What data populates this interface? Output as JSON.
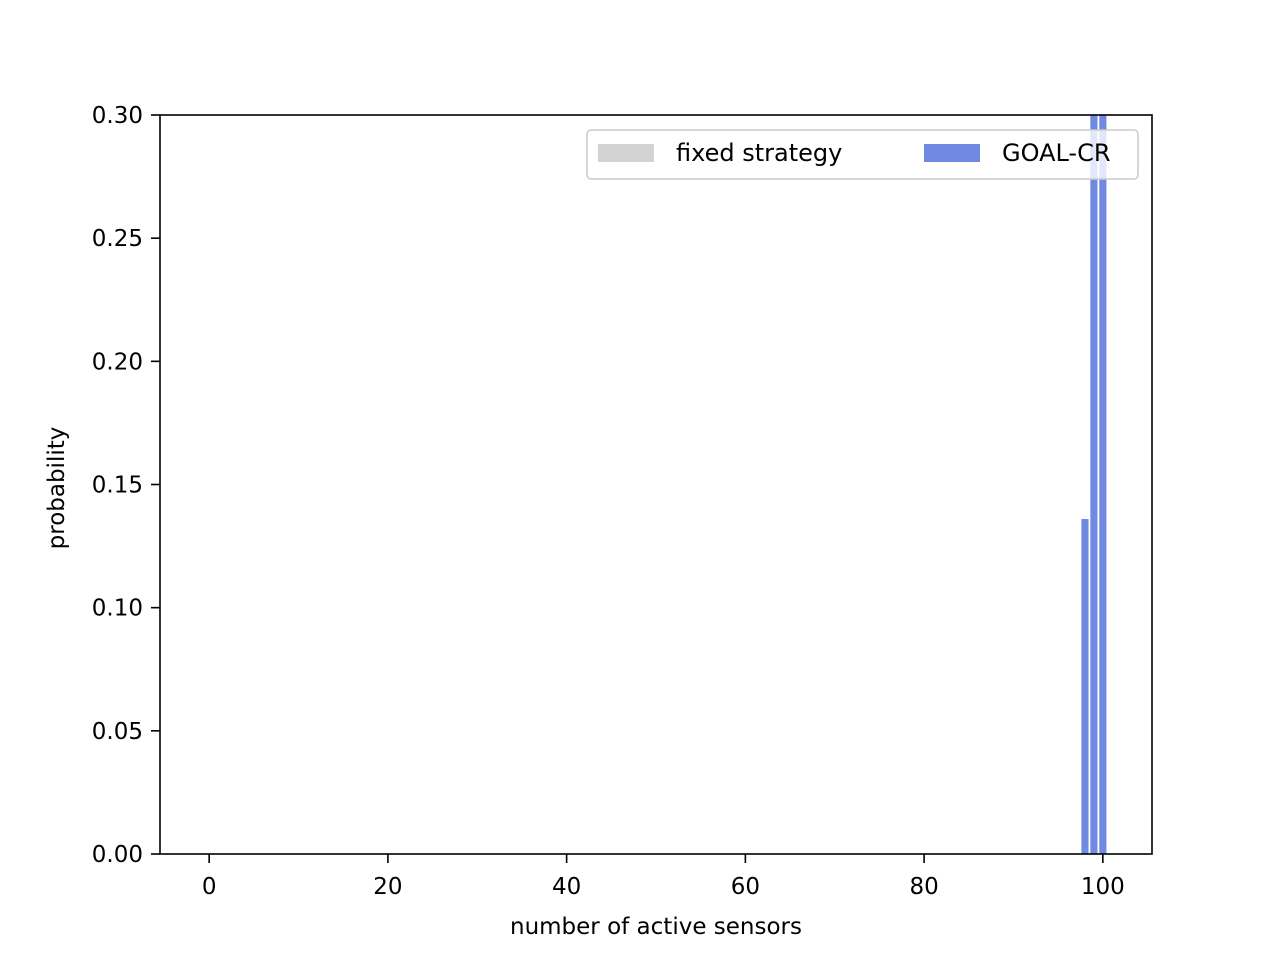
{
  "chart_data": {
    "type": "bar",
    "xlabel": "number of active sensors",
    "ylabel": "probability",
    "xlim": [
      -5.5,
      105.5
    ],
    "ylim": [
      0,
      0.3
    ],
    "xticks": [
      0,
      20,
      40,
      60,
      80,
      100
    ],
    "yticks": [
      0.0,
      0.05,
      0.1,
      0.15,
      0.2,
      0.25,
      0.3
    ],
    "xtick_labels": [
      "0",
      "20",
      "40",
      "60",
      "80",
      "100"
    ],
    "ytick_labels": [
      "0.00",
      "0.05",
      "0.10",
      "0.15",
      "0.20",
      "0.25",
      "0.30"
    ],
    "grid": false,
    "legend": {
      "position": "upper-right",
      "columns": 2
    },
    "series": [
      {
        "name": "fixed strategy",
        "color": "#d3d3d3",
        "x": [],
        "values": []
      },
      {
        "name": "GOAL-CR",
        "color": "#6f8ae0",
        "x": [
          98,
          99,
          100
        ],
        "values": [
          0.136,
          0.3,
          0.3
        ]
      }
    ]
  }
}
